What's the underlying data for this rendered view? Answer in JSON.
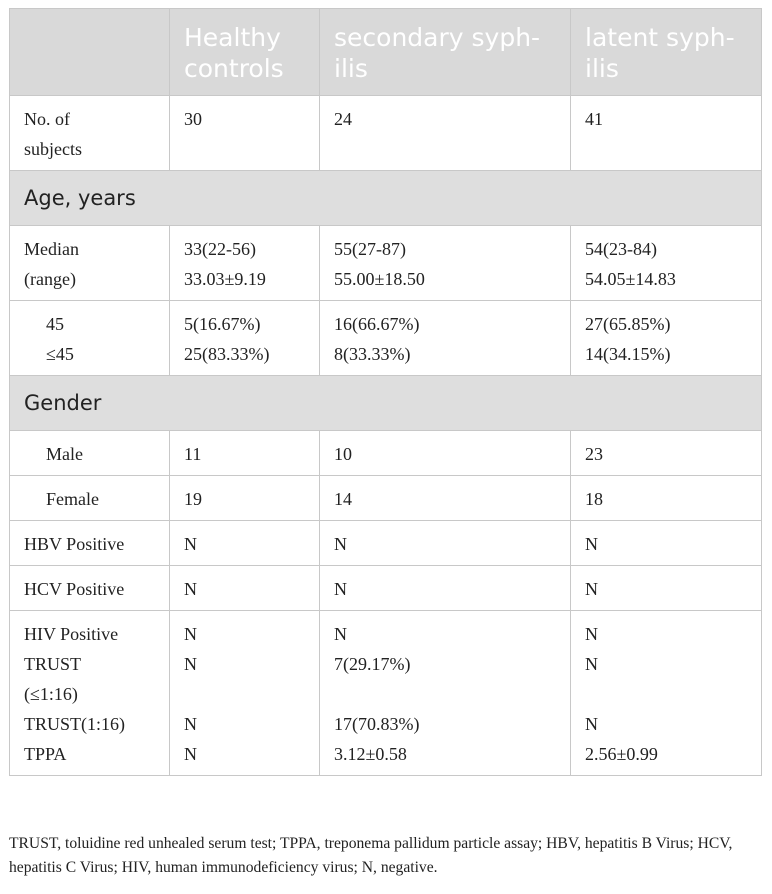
{
  "table": {
    "headers": [
      "",
      "Healthy controls",
      "secondary syph-ilis",
      "latent syph-ilis"
    ],
    "header_lines": [
      [],
      [
        "Healthy",
        "controls"
      ],
      [
        "secondary syph-",
        "ilis"
      ],
      [
        "latent syph-",
        "ilis"
      ]
    ],
    "rows": [
      {
        "kind": "data",
        "indent": false,
        "label_lines": [
          "No. of",
          "subjects"
        ],
        "cells": [
          [
            "30"
          ],
          [
            "24"
          ],
          [
            "41"
          ]
        ]
      },
      {
        "kind": "section",
        "label": "Age, years"
      },
      {
        "kind": "data",
        "indent": false,
        "label_lines": [
          "Median",
          "(range)"
        ],
        "cells": [
          [
            "33(22-56)",
            "33.03±9.19"
          ],
          [
            "55(27-87)",
            "55.00±18.50"
          ],
          [
            "54(23-84)",
            "54.05±14.83"
          ]
        ]
      },
      {
        "kind": "data",
        "indent": true,
        "label_lines": [
          "45",
          "≤45"
        ],
        "cells": [
          [
            "5(16.67%)",
            "25(83.33%)"
          ],
          [
            "16(66.67%)",
            "8(33.33%)"
          ],
          [
            "27(65.85%)",
            "14(34.15%)"
          ]
        ]
      },
      {
        "kind": "section",
        "label": "Gender"
      },
      {
        "kind": "data",
        "indent": true,
        "label_lines": [
          "Male"
        ],
        "cells": [
          [
            "11"
          ],
          [
            "10"
          ],
          [
            "23"
          ]
        ]
      },
      {
        "kind": "data",
        "indent": true,
        "label_lines": [
          "Female"
        ],
        "cells": [
          [
            "19"
          ],
          [
            "14"
          ],
          [
            "18"
          ]
        ]
      },
      {
        "kind": "data",
        "indent": false,
        "label_lines": [
          "HBV Positive"
        ],
        "cells": [
          [
            "N"
          ],
          [
            "N"
          ],
          [
            "N"
          ]
        ]
      },
      {
        "kind": "data",
        "indent": false,
        "label_lines": [
          "HCV Positive"
        ],
        "cells": [
          [
            "N"
          ],
          [
            "N"
          ],
          [
            "N"
          ]
        ]
      },
      {
        "kind": "data",
        "indent": false,
        "label_lines": [
          "HIV Positive",
          "TRUST",
          "(≤1:16)",
          "TRUST(1:16)",
          "TPPA"
        ],
        "cells": [
          [
            "N",
            "N",
            "",
            "N",
            "N"
          ],
          [
            "N",
            "7(29.17%)",
            "",
            "17(70.83%)",
            "3.12±0.58"
          ],
          [
            "N",
            "N",
            "",
            "N",
            "2.56±0.99"
          ]
        ]
      }
    ]
  },
  "footnote": "TRUST, toluidine red unhealed serum test; TPPA, treponema pallidum particle assay; HBV, hepatitis B Virus; HCV, hepatitis C Virus; HIV, human immunodeficiency virus; N, negative."
}
